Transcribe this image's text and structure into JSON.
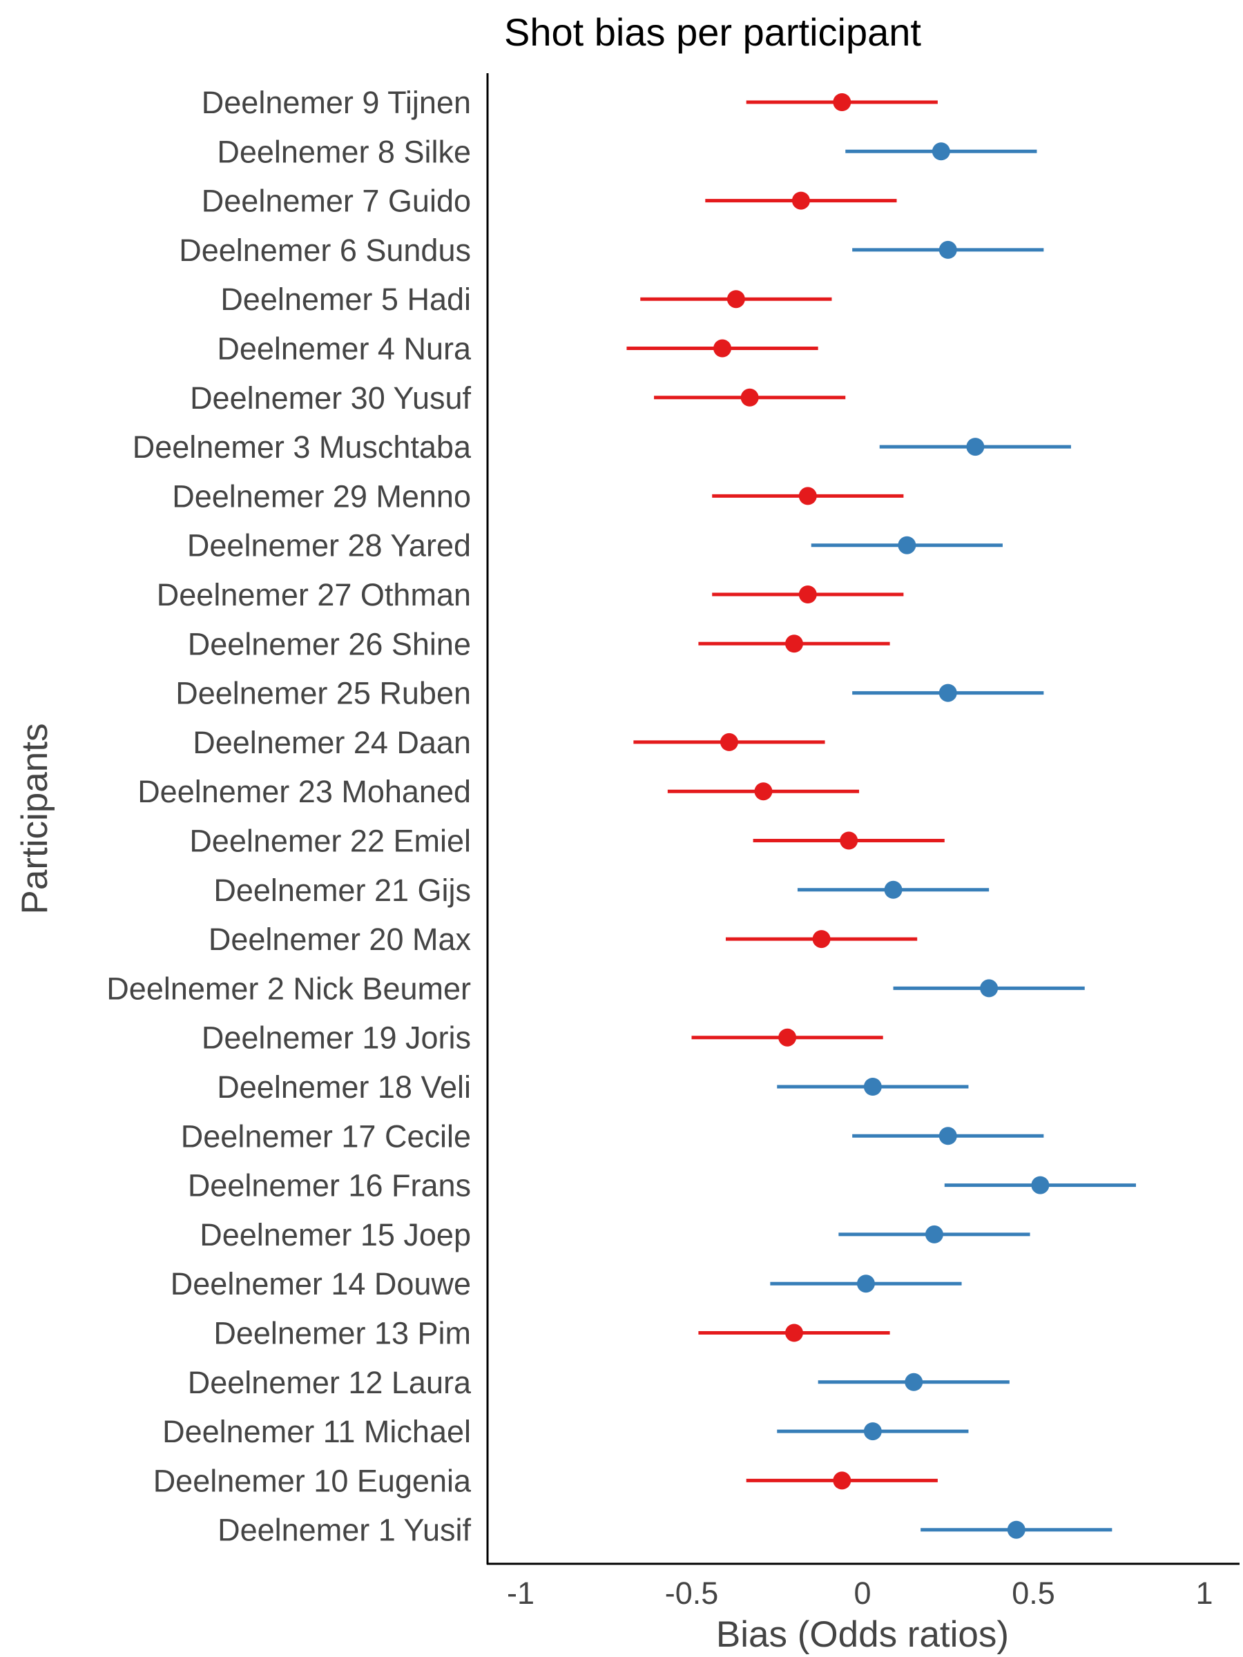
{
  "chart_data": {
    "type": "scatter",
    "title": "Shot bias per participant",
    "xlabel": "Bias (Odds ratios)",
    "ylabel": "Participants",
    "xlim": [
      -1.1,
      1.1
    ],
    "x_ticks": [
      -1,
      -0.5,
      0,
      0.5,
      1
    ],
    "x_tick_labels": [
      "-1",
      "-0.5",
      "0",
      "0.5",
      "1"
    ],
    "grid": false,
    "legend": "none",
    "colors": {
      "negative": "#e41a1c",
      "positive": "#377eb8"
    },
    "participants": [
      {
        "label": "Deelnemer 9 Tijnen",
        "estimate": -0.06,
        "lower": -0.34,
        "upper": 0.22
      },
      {
        "label": "Deelnemer 8 Silke",
        "estimate": 0.23,
        "lower": -0.05,
        "upper": 0.51
      },
      {
        "label": "Deelnemer 7 Guido",
        "estimate": -0.18,
        "lower": -0.46,
        "upper": 0.1
      },
      {
        "label": "Deelnemer 6 Sundus",
        "estimate": 0.25,
        "lower": -0.03,
        "upper": 0.53
      },
      {
        "label": "Deelnemer 5 Hadi",
        "estimate": -0.37,
        "lower": -0.65,
        "upper": -0.09
      },
      {
        "label": "Deelnemer 4 Nura",
        "estimate": -0.41,
        "lower": -0.69,
        "upper": -0.13
      },
      {
        "label": "Deelnemer 30 Yusuf",
        "estimate": -0.33,
        "lower": -0.61,
        "upper": -0.05
      },
      {
        "label": "Deelnemer 3 Muschtaba",
        "estimate": 0.33,
        "lower": 0.05,
        "upper": 0.61
      },
      {
        "label": "Deelnemer 29 Menno",
        "estimate": -0.16,
        "lower": -0.44,
        "upper": 0.12
      },
      {
        "label": "Deelnemer 28 Yared",
        "estimate": 0.13,
        "lower": -0.15,
        "upper": 0.41
      },
      {
        "label": "Deelnemer 27 Othman",
        "estimate": -0.16,
        "lower": -0.44,
        "upper": 0.12
      },
      {
        "label": "Deelnemer 26 Shine",
        "estimate": -0.2,
        "lower": -0.48,
        "upper": 0.08
      },
      {
        "label": "Deelnemer 25 Ruben",
        "estimate": 0.25,
        "lower": -0.03,
        "upper": 0.53
      },
      {
        "label": "Deelnemer 24 Daan",
        "estimate": -0.39,
        "lower": -0.67,
        "upper": -0.11
      },
      {
        "label": "Deelnemer 23 Mohaned",
        "estimate": -0.29,
        "lower": -0.57,
        "upper": -0.01
      },
      {
        "label": "Deelnemer 22 Emiel",
        "estimate": -0.04,
        "lower": -0.32,
        "upper": 0.24
      },
      {
        "label": "Deelnemer 21 Gijs",
        "estimate": 0.09,
        "lower": -0.19,
        "upper": 0.37
      },
      {
        "label": "Deelnemer 20 Max",
        "estimate": -0.12,
        "lower": -0.4,
        "upper": 0.16
      },
      {
        "label": "Deelnemer 2 Nick Beumer",
        "estimate": 0.37,
        "lower": 0.09,
        "upper": 0.65
      },
      {
        "label": "Deelnemer 19 Joris",
        "estimate": -0.22,
        "lower": -0.5,
        "upper": 0.06
      },
      {
        "label": "Deelnemer 18 Veli",
        "estimate": 0.03,
        "lower": -0.25,
        "upper": 0.31
      },
      {
        "label": "Deelnemer 17 Cecile",
        "estimate": 0.25,
        "lower": -0.03,
        "upper": 0.53
      },
      {
        "label": "Deelnemer 16 Frans",
        "estimate": 0.52,
        "lower": 0.24,
        "upper": 0.8
      },
      {
        "label": "Deelnemer 15 Joep",
        "estimate": 0.21,
        "lower": -0.07,
        "upper": 0.49
      },
      {
        "label": "Deelnemer 14 Douwe",
        "estimate": 0.01,
        "lower": -0.27,
        "upper": 0.29
      },
      {
        "label": "Deelnemer 13 Pim",
        "estimate": -0.2,
        "lower": -0.48,
        "upper": 0.08
      },
      {
        "label": "Deelnemer 12 Laura",
        "estimate": 0.15,
        "lower": -0.13,
        "upper": 0.43
      },
      {
        "label": "Deelnemer 11 Michael",
        "estimate": 0.03,
        "lower": -0.25,
        "upper": 0.31
      },
      {
        "label": "Deelnemer 10 Eugenia",
        "estimate": -0.06,
        "lower": -0.34,
        "upper": 0.22
      },
      {
        "label": "Deelnemer 1 Yusif",
        "estimate": 0.45,
        "lower": 0.17,
        "upper": 0.73
      }
    ]
  }
}
